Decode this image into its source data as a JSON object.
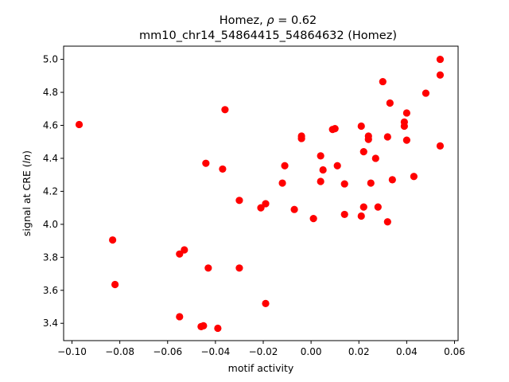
{
  "chart_data": {
    "type": "scatter",
    "title_line1_prefix": "Homez, ",
    "title_rho_symbol": "ρ",
    "title_rho_value": " = 0.62",
    "title_line2": "mm10_chr14_54864415_54864632 (Homez)",
    "xlabel": "motif activity",
    "ylabel_prefix": "signal at CRE (",
    "ylabel_italic": "ln",
    "ylabel_suffix": ")",
    "xlim": [
      -0.1035,
      0.0615
    ],
    "ylim": [
      3.295,
      5.08
    ],
    "xticks": [
      -0.1,
      -0.08,
      -0.06,
      -0.04,
      -0.02,
      0.0,
      0.02,
      0.04,
      0.06
    ],
    "xtick_labels": [
      "−0.10",
      "−0.08",
      "−0.06",
      "−0.04",
      "−0.02",
      "0.00",
      "0.02",
      "0.04",
      "0.06"
    ],
    "yticks": [
      3.4,
      3.6,
      3.8,
      4.0,
      4.2,
      4.4,
      4.6,
      4.8,
      5.0
    ],
    "ytick_labels": [
      "3.4",
      "3.6",
      "3.8",
      "4.0",
      "4.2",
      "4.4",
      "4.6",
      "4.8",
      "5.0"
    ],
    "marker_color": "#ff0000",
    "grid": false,
    "points": [
      {
        "x": -0.097,
        "y": 4.605
      },
      {
        "x": -0.083,
        "y": 3.905
      },
      {
        "x": -0.082,
        "y": 3.635
      },
      {
        "x": -0.055,
        "y": 3.44
      },
      {
        "x": -0.055,
        "y": 3.82
      },
      {
        "x": -0.053,
        "y": 3.845
      },
      {
        "x": -0.046,
        "y": 3.38
      },
      {
        "x": -0.045,
        "y": 3.385
      },
      {
        "x": -0.044,
        "y": 4.37
      },
      {
        "x": -0.043,
        "y": 3.735
      },
      {
        "x": -0.039,
        "y": 3.37
      },
      {
        "x": -0.037,
        "y": 4.335
      },
      {
        "x": -0.036,
        "y": 4.695
      },
      {
        "x": -0.03,
        "y": 4.145
      },
      {
        "x": -0.03,
        "y": 3.735
      },
      {
        "x": -0.021,
        "y": 4.1
      },
      {
        "x": -0.019,
        "y": 4.125
      },
      {
        "x": -0.019,
        "y": 3.52
      },
      {
        "x": -0.012,
        "y": 4.25
      },
      {
        "x": -0.011,
        "y": 4.355
      },
      {
        "x": -0.007,
        "y": 4.09
      },
      {
        "x": -0.004,
        "y": 4.535
      },
      {
        "x": -0.004,
        "y": 4.52
      },
      {
        "x": 0.001,
        "y": 4.035
      },
      {
        "x": 0.004,
        "y": 4.415
      },
      {
        "x": 0.004,
        "y": 4.26
      },
      {
        "x": 0.005,
        "y": 4.33
      },
      {
        "x": 0.009,
        "y": 4.575
      },
      {
        "x": 0.01,
        "y": 4.58
      },
      {
        "x": 0.011,
        "y": 4.355
      },
      {
        "x": 0.014,
        "y": 4.245
      },
      {
        "x": 0.014,
        "y": 4.06
      },
      {
        "x": 0.021,
        "y": 4.595
      },
      {
        "x": 0.021,
        "y": 4.05
      },
      {
        "x": 0.022,
        "y": 4.105
      },
      {
        "x": 0.022,
        "y": 4.44
      },
      {
        "x": 0.024,
        "y": 4.535
      },
      {
        "x": 0.024,
        "y": 4.515
      },
      {
        "x": 0.025,
        "y": 4.25
      },
      {
        "x": 0.027,
        "y": 4.4
      },
      {
        "x": 0.028,
        "y": 4.105
      },
      {
        "x": 0.03,
        "y": 4.865
      },
      {
        "x": 0.032,
        "y": 4.53
      },
      {
        "x": 0.032,
        "y": 4.015
      },
      {
        "x": 0.033,
        "y": 4.735
      },
      {
        "x": 0.034,
        "y": 4.27
      },
      {
        "x": 0.039,
        "y": 4.595
      },
      {
        "x": 0.039,
        "y": 4.62
      },
      {
        "x": 0.04,
        "y": 4.675
      },
      {
        "x": 0.04,
        "y": 4.51
      },
      {
        "x": 0.043,
        "y": 4.29
      },
      {
        "x": 0.048,
        "y": 4.795
      },
      {
        "x": 0.054,
        "y": 5.0
      },
      {
        "x": 0.054,
        "y": 4.905
      },
      {
        "x": 0.054,
        "y": 4.475
      }
    ]
  }
}
